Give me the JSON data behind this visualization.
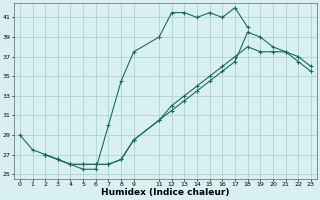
{
  "xlabel": "Humidex (Indice chaleur)",
  "bg_color": "#d8f0f0",
  "grid_color": "#aed4d4",
  "line_color": "#1a6b5a",
  "xlim": [
    -0.5,
    23.5
  ],
  "ylim": [
    24.5,
    42.5
  ],
  "xticks": [
    0,
    1,
    2,
    3,
    4,
    5,
    6,
    7,
    8,
    9,
    11,
    12,
    13,
    14,
    15,
    16,
    17,
    18,
    19,
    20,
    21,
    22,
    23
  ],
  "yticks": [
    25,
    27,
    29,
    31,
    33,
    35,
    37,
    39,
    41
  ],
  "line1_x": [
    0,
    1,
    2,
    3,
    4,
    5,
    6,
    7,
    8,
    9,
    11,
    12,
    13,
    14,
    15,
    16,
    17,
    18
  ],
  "line1_y": [
    29,
    27.5,
    27,
    26.5,
    26,
    25.5,
    25.5,
    30,
    34.5,
    37.5,
    39,
    41.5,
    41.5,
    41,
    41.5,
    41,
    42,
    40
  ],
  "line2_x": [
    2,
    3,
    4,
    5,
    6,
    7,
    8,
    9,
    11,
    12,
    13,
    14,
    15,
    16,
    17,
    18,
    19,
    20,
    21,
    22,
    23
  ],
  "line2_y": [
    27,
    26.5,
    26,
    26,
    26,
    26,
    26.5,
    28.5,
    30.5,
    32,
    33,
    34,
    35,
    36,
    37,
    38,
    37.5,
    37.5,
    37.5,
    36.5,
    35.5
  ],
  "line3_x": [
    2,
    3,
    4,
    5,
    6,
    7,
    8,
    9,
    11,
    12,
    13,
    14,
    15,
    16,
    17,
    18,
    19,
    20,
    21,
    22,
    23
  ],
  "line3_y": [
    27,
    26.5,
    26,
    26,
    26,
    26,
    26.5,
    28.5,
    30.5,
    31.5,
    32.5,
    33.5,
    34.5,
    35.5,
    36.5,
    39.5,
    39,
    38,
    37.5,
    37,
    36
  ]
}
